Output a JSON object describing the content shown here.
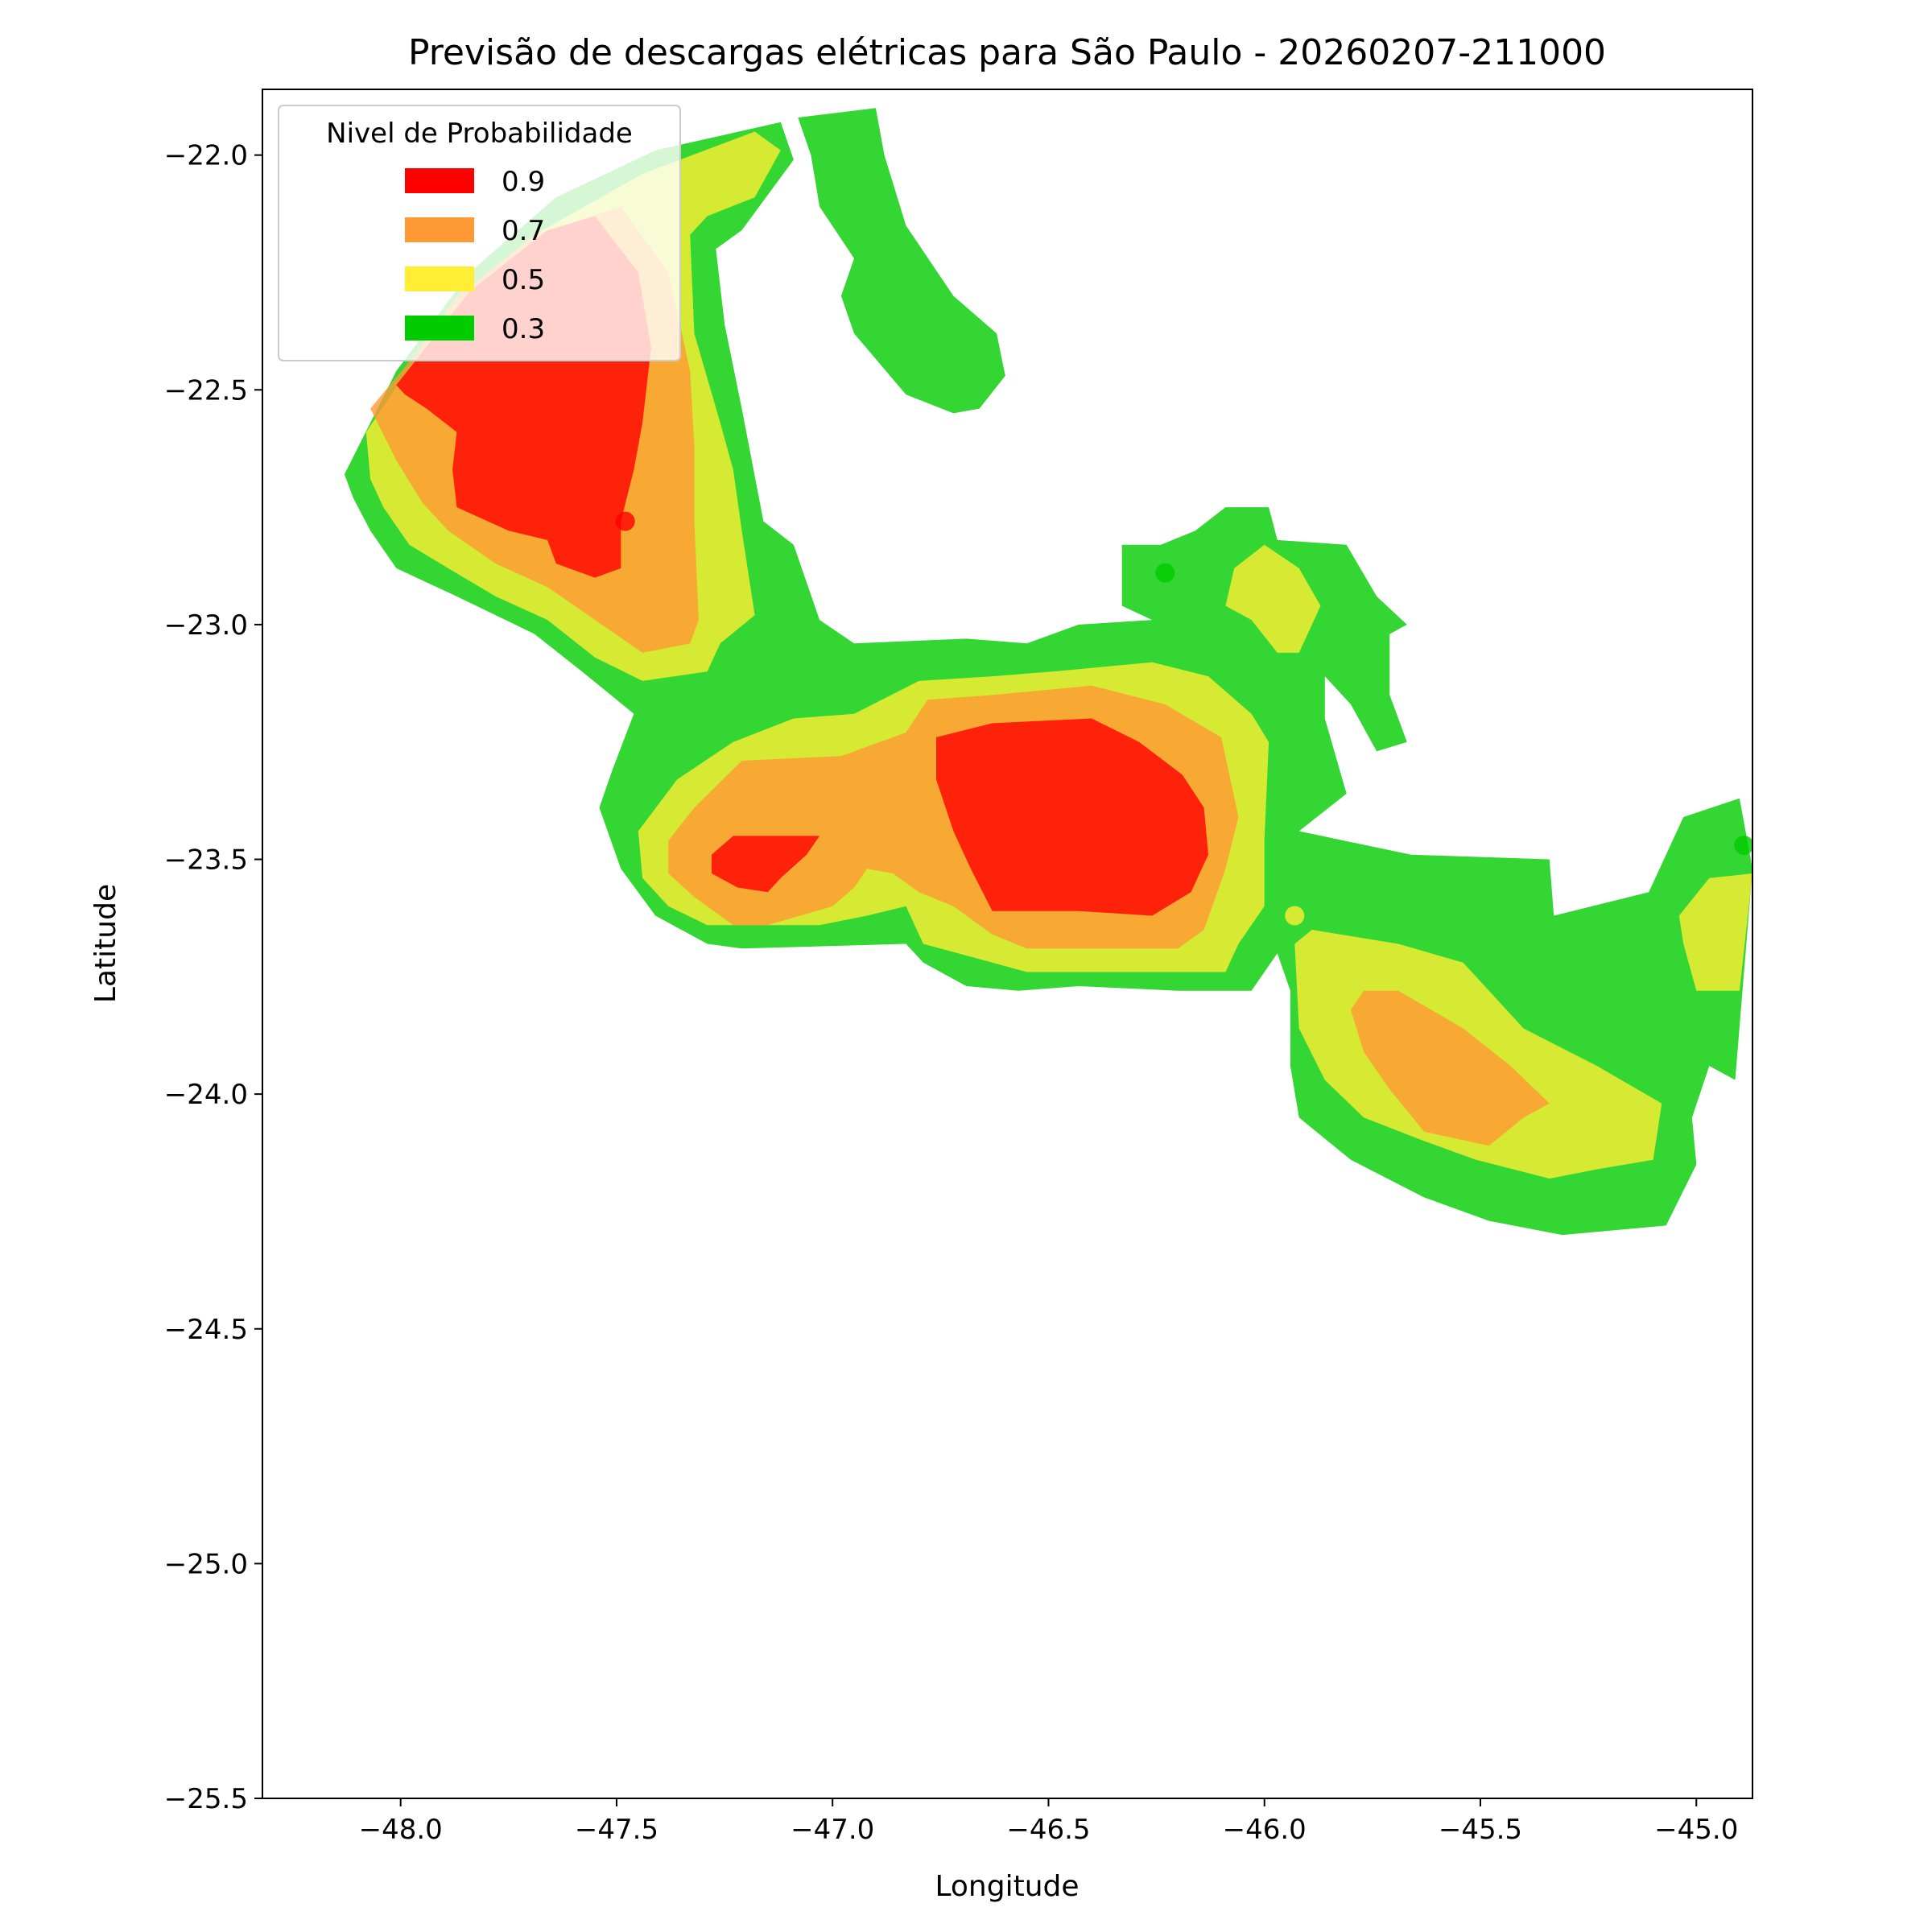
{
  "chart_data": {
    "type": "contour",
    "title": "Previsão de descargas elétricas para São Paulo - 20260207-211000",
    "xlabel": "Longitude",
    "ylabel": "Latitude",
    "xlim": [
      -48.32,
      -44.87
    ],
    "ylim": [
      -25.5,
      -21.86
    ],
    "xticks": [
      {
        "value": -48.0,
        "label": "−48.0"
      },
      {
        "value": -47.5,
        "label": "−47.5"
      },
      {
        "value": -47.0,
        "label": "−47.0"
      },
      {
        "value": -46.5,
        "label": "−46.5"
      },
      {
        "value": -46.0,
        "label": "−46.0"
      },
      {
        "value": -45.5,
        "label": "−45.5"
      },
      {
        "value": -45.0,
        "label": "−45.0"
      }
    ],
    "yticks": [
      {
        "value": -22.0,
        "label": "−22.0"
      },
      {
        "value": -22.5,
        "label": "−22.5"
      },
      {
        "value": -23.0,
        "label": "−23.0"
      },
      {
        "value": -23.5,
        "label": "−23.5"
      },
      {
        "value": -24.0,
        "label": "−24.0"
      },
      {
        "value": -24.5,
        "label": "−24.5"
      },
      {
        "value": -25.0,
        "label": "−25.0"
      },
      {
        "value": -25.5,
        "label": "−25.5"
      }
    ],
    "alpha": 0.8,
    "legend": {
      "title": "Nivel de Probabilidade",
      "loc": "upper left"
    },
    "levels": [
      {
        "name": "0.9",
        "color": "#ff0000",
        "polygons": [
          {
            "x": [
              -48.01,
              -47.84,
              -47.66,
              -47.55,
              -47.45,
              -47.42,
              -47.44,
              -47.46,
              -47.49,
              -47.49,
              -47.55,
              -47.64,
              -47.66,
              -47.75,
              -47.87,
              -47.88,
              -47.87,
              -47.94,
              -47.99
            ],
            "y": [
              -22.49,
              -22.29,
              -22.16,
              -22.13,
              -22.25,
              -22.41,
              -22.57,
              -22.67,
              -22.78,
              -22.88,
              -22.9,
              -22.87,
              -22.82,
              -22.8,
              -22.75,
              -22.67,
              -22.59,
              -22.54,
              -22.51
            ]
          },
          {
            "x": [
              -46.76,
              -46.63,
              -46.4,
              -46.29,
              -46.19,
              -46.14,
              -46.13,
              -46.17,
              -46.26,
              -46.43,
              -46.63,
              -46.68,
              -46.72,
              -46.76
            ],
            "y": [
              -23.24,
              -23.21,
              -23.2,
              -23.25,
              -23.32,
              -23.39,
              -23.49,
              -23.57,
              -23.62,
              -23.61,
              -23.61,
              -23.52,
              -23.44,
              -23.33
            ]
          },
          {
            "x": [
              -47.28,
              -47.23,
              -47.03,
              -47.06,
              -47.12,
              -47.15,
              -47.22,
              -47.28
            ],
            "y": [
              -23.49,
              -23.45,
              -23.45,
              -23.49,
              -23.54,
              -23.57,
              -23.56,
              -23.53
            ]
          }
        ]
      },
      {
        "name": "0.7",
        "color": "#ff9933",
        "polygons": [
          {
            "x": [
              -48.07,
              -47.98,
              -47.87,
              -47.69,
              -47.49,
              -47.38,
              -47.33,
              -47.32,
              -47.32,
              -47.31,
              -47.33,
              -47.44,
              -47.55,
              -47.66,
              -47.78,
              -47.89,
              -47.95,
              -48.01
            ],
            "y": [
              -22.54,
              -22.44,
              -22.3,
              -22.17,
              -22.11,
              -22.25,
              -22.46,
              -22.62,
              -22.78,
              -22.99,
              -23.04,
              -23.06,
              -22.99,
              -22.92,
              -22.87,
              -22.8,
              -22.74,
              -22.65
            ]
          },
          {
            "x": [
              -47.38,
              -47.32,
              -47.21,
              -46.98,
              -46.83,
              -46.78,
              -46.63,
              -46.4,
              -46.23,
              -46.1,
              -46.06,
              -46.09,
              -46.14,
              -46.2,
              -46.55,
              -46.63,
              -46.72,
              -46.8,
              -46.86,
              -46.92,
              -46.95,
              -47.0,
              -47.15,
              -47.23,
              -47.32,
              -47.38
            ],
            "y": [
              -23.46,
              -23.39,
              -23.29,
              -23.28,
              -23.23,
              -23.16,
              -23.15,
              -23.13,
              -23.17,
              -23.24,
              -23.41,
              -23.52,
              -23.65,
              -23.69,
              -23.69,
              -23.66,
              -23.6,
              -23.57,
              -23.53,
              -23.52,
              -23.56,
              -23.6,
              -23.64,
              -23.64,
              -23.58,
              -23.53
            ]
          },
          {
            "x": [
              -45.8,
              -45.77,
              -45.69,
              -45.54,
              -45.43,
              -45.34,
              -45.4,
              -45.48,
              -45.63,
              -45.71,
              -45.77
            ],
            "y": [
              -23.82,
              -23.78,
              -23.78,
              -23.86,
              -23.94,
              -24.02,
              -24.05,
              -24.11,
              -24.08,
              -23.99,
              -23.91
            ]
          }
        ]
      },
      {
        "name": "0.5",
        "color": "#ffee33",
        "polygons": [
          {
            "x": [
              -48.08,
              -47.89,
              -47.69,
              -47.44,
              -47.18,
              -47.12,
              -47.18,
              -47.29,
              -47.33,
              -47.32,
              -47.26,
              -47.23,
              -47.21,
              -47.18,
              -47.26,
              -47.29,
              -47.44,
              -47.55,
              -47.66,
              -47.78,
              -47.89,
              -47.98,
              -48.04,
              -48.07
            ],
            "y": [
              -22.59,
              -22.33,
              -22.17,
              -22.04,
              -21.95,
              -21.99,
              -22.09,
              -22.13,
              -22.17,
              -22.38,
              -22.57,
              -22.67,
              -22.8,
              -22.98,
              -23.04,
              -23.1,
              -23.12,
              -23.07,
              -22.99,
              -22.94,
              -22.88,
              -22.83,
              -22.75,
              -22.69
            ]
          },
          {
            "x": [
              -47.45,
              -47.36,
              -47.23,
              -47.09,
              -46.95,
              -46.8,
              -46.63,
              -46.49,
              -46.26,
              -46.13,
              -46.03,
              -45.99,
              -46.0,
              -46.0,
              -46.06,
              -46.09,
              -46.29,
              -46.55,
              -46.63,
              -46.79,
              -46.83,
              -46.92,
              -47.03,
              -47.29,
              -47.38,
              -47.44
            ],
            "y": [
              -23.44,
              -23.33,
              -23.25,
              -23.2,
              -23.19,
              -23.12,
              -23.11,
              -23.1,
              -23.08,
              -23.11,
              -23.19,
              -23.25,
              -23.46,
              -23.6,
              -23.68,
              -23.74,
              -23.74,
              -23.74,
              -23.72,
              -23.68,
              -23.6,
              -23.62,
              -23.64,
              -23.64,
              -23.6,
              -23.54
            ]
          },
          {
            "x": [
              -45.93,
              -45.89,
              -45.69,
              -45.54,
              -45.48,
              -45.4,
              -45.23,
              -45.08,
              -45.1,
              -45.23,
              -45.34,
              -45.51,
              -45.63,
              -45.77,
              -45.86,
              -45.92
            ],
            "y": [
              -23.68,
              -23.65,
              -23.68,
              -23.72,
              -23.78,
              -23.86,
              -23.94,
              -24.02,
              -24.14,
              -24.16,
              -24.18,
              -24.14,
              -24.1,
              -24.05,
              -23.97,
              -23.86
            ]
          },
          {
            "x": [
              -46.07,
              -46.0,
              -45.92,
              -45.87,
              -45.92,
              -45.97,
              -46.03,
              -46.09
            ],
            "y": [
              -22.88,
              -22.83,
              -22.88,
              -22.96,
              -23.06,
              -23.06,
              -22.99,
              -22.96
            ]
          },
          {
            "x": [
              -45.04,
              -44.97,
              -44.87,
              -44.9,
              -45.0,
              -45.03
            ],
            "y": [
              -23.62,
              -23.54,
              -23.53,
              -23.78,
              -23.78,
              -23.68
            ]
          }
        ]
      },
      {
        "name": "0.3",
        "color": "#00cc00",
        "polygons": [
          {
            "x": [
              -48.13,
              -48.01,
              -47.84,
              -47.64,
              -47.41,
              -47.12,
              -47.09,
              -47.21,
              -47.27,
              -47.25,
              -47.21,
              -47.16,
              -47.09,
              -47.03,
              -46.95,
              -46.69,
              -46.55,
              -46.43,
              -46.26,
              -46.33,
              -46.33,
              -46.24,
              -46.16,
              -46.09,
              -45.99,
              -45.97,
              -45.81,
              -45.74,
              -45.67,
              -45.71,
              -45.71,
              -45.67,
              -45.74,
              -45.8,
              -45.86,
              -45.86,
              -45.81,
              -45.92,
              -45.66,
              -45.34,
              -45.33,
              -45.11,
              -45.03,
              -44.9,
              -44.87,
              -44.91,
              -44.97,
              -45.01,
              -45.0,
              -45.07,
              -45.31,
              -45.48,
              -45.63,
              -45.8,
              -45.92,
              -45.94,
              -45.94,
              -45.97,
              -46.03,
              -46.2,
              -46.43,
              -46.57,
              -46.69,
              -46.79,
              -46.83,
              -47.21,
              -47.29,
              -47.41,
              -47.49,
              -47.54,
              -47.51,
              -47.46,
              -47.58,
              -47.69,
              -47.78,
              -47.87,
              -48.01,
              -48.07,
              -48.11
            ],
            "y": [
              -22.68,
              -22.46,
              -22.25,
              -22.09,
              -21.99,
              -21.93,
              -22.01,
              -22.16,
              -22.2,
              -22.36,
              -22.54,
              -22.78,
              -22.83,
              -22.99,
              -23.04,
              -23.03,
              -23.04,
              -23.0,
              -22.99,
              -22.96,
              -22.83,
              -22.83,
              -22.8,
              -22.75,
              -22.75,
              -22.82,
              -22.83,
              -22.94,
              -23.0,
              -23.02,
              -23.15,
              -23.25,
              -23.27,
              -23.17,
              -23.11,
              -23.2,
              -23.36,
              -23.44,
              -23.49,
              -23.5,
              -23.62,
              -23.57,
              -23.41,
              -23.37,
              -23.52,
              -23.97,
              -23.94,
              -24.05,
              -24.15,
              -24.28,
              -24.3,
              -24.27,
              -24.22,
              -24.14,
              -24.05,
              -23.94,
              -23.78,
              -23.7,
              -23.78,
              -23.78,
              -23.77,
              -23.78,
              -23.77,
              -23.72,
              -23.68,
              -23.69,
              -23.68,
              -23.62,
              -23.52,
              -23.39,
              -23.31,
              -23.19,
              -23.1,
              -23.02,
              -22.98,
              -22.94,
              -22.88,
              -22.8,
              -22.73
            ]
          },
          {
            "x": [
              -47.08,
              -46.9,
              -46.88,
              -46.83,
              -46.72,
              -46.62,
              -46.6,
              -46.66,
              -46.72,
              -46.83,
              -46.95,
              -46.98,
              -46.95,
              -47.03,
              -47.05
            ],
            "y": [
              -21.92,
              -21.9,
              -22.0,
              -22.15,
              -22.3,
              -22.38,
              -22.47,
              -22.54,
              -22.55,
              -22.51,
              -22.38,
              -22.3,
              -22.22,
              -22.11,
              -22.0
            ]
          }
        ]
      }
    ],
    "points": {
      "x": [
        -47.48,
        -46.23,
        -45.93,
        -44.89
      ],
      "y": [
        -22.78,
        -22.89,
        -23.62,
        -23.47
      ],
      "colors": [
        "#ff0000",
        "#00cc00",
        "#ffee33",
        "#00cc00"
      ]
    }
  }
}
